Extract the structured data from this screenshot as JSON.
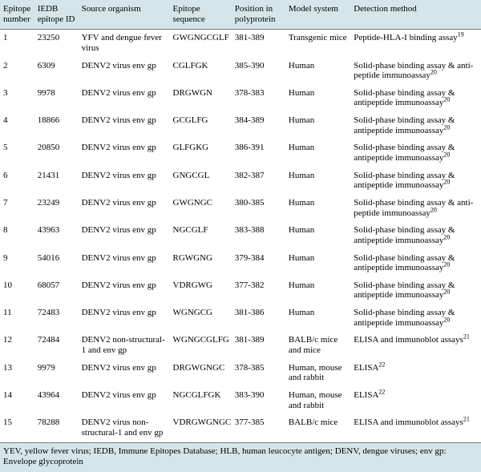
{
  "columns": [
    "Epitope number",
    "IEDB epitope ID",
    "Source organism",
    "Epitope sequence",
    "Position in polyprotein",
    "Model system",
    "Detection method"
  ],
  "rows": [
    {
      "num": "1",
      "iedb": "23250",
      "org": "YFV and dengue fever virus",
      "seq": "GWGNGCGLF",
      "pos": "381-389",
      "model": "Transgenic mice",
      "det": "Peptide-HLA-I binding assay",
      "ref": "19"
    },
    {
      "num": "2",
      "iedb": "6309",
      "org": "DENV2 virus env gp",
      "seq": "CGLFGK",
      "pos": "385-390",
      "model": "Human",
      "det": "Solid-phase binding assay & anti-peptide immunoassay",
      "ref": "20"
    },
    {
      "num": "3",
      "iedb": "9978",
      "org": "DENV2 virus env gp",
      "seq": "DRGWGN",
      "pos": "378-383",
      "model": "Human",
      "det": "Solid-phase binding assay & antipeptide immunoassay",
      "ref": "20"
    },
    {
      "num": "4",
      "iedb": "18866",
      "org": "DENV2 virus env gp",
      "seq": "GCGLFG",
      "pos": "384-389",
      "model": "Human",
      "det": "Solid-phase binding assay & antipeptide immunoassay",
      "ref": "20"
    },
    {
      "num": "5",
      "iedb": "20850",
      "org": "DENV2 virus env gp",
      "seq": "GLFGKG",
      "pos": "386-391",
      "model": "Human",
      "det": "Solid-phase binding assay & antipeptide immunoassay",
      "ref": "20"
    },
    {
      "num": "6",
      "iedb": "21431",
      "org": "DENV2 virus env gp",
      "seq": "GNGCGL",
      "pos": "382-387",
      "model": "Human",
      "det": "Solid-phase binding assay & antipeptide immunoassay",
      "ref": "20"
    },
    {
      "num": "7",
      "iedb": "23249",
      "org": "DENV2 virus env gp",
      "seq": "GWGNGC",
      "pos": "380-385",
      "model": "Human",
      "det": "Solid-phase binding assay & anti-peptide immunoassay",
      "ref": "20"
    },
    {
      "num": "8",
      "iedb": "43963",
      "org": "DENV2 virus env gp",
      "seq": "NGCGLF",
      "pos": "383-388",
      "model": "Human",
      "det": "Solid-phase binding assay & antipeptide immunoassay",
      "ref": "20"
    },
    {
      "num": "9",
      "iedb": "54016",
      "org": "DENV2 virus env gp",
      "seq": "RGWGNG",
      "pos": "379-384",
      "model": "Human",
      "det": "Solid-phase binding assay & antipeptide immunoassay",
      "ref": "20"
    },
    {
      "num": "10",
      "iedb": "68057",
      "org": "DENV2 virus env gp",
      "seq": "VDRGWG",
      "pos": "377-382",
      "model": "Human",
      "det": "Solid-phase binding assay & antipeptide immunoassay",
      "ref": "20"
    },
    {
      "num": "11",
      "iedb": "72483",
      "org": "DENV2 virus env gp",
      "seq": "WGNGCG",
      "pos": "381-386",
      "model": "Human",
      "det": "Solid-phase binding assay & antipeptide immunoassay",
      "ref": "20"
    },
    {
      "num": "12",
      "iedb": "72484",
      "org": "DENV2 non-structural-1 and env gp",
      "seq": "WGNGCGLFG",
      "pos": "381-389",
      "model": "BALB/c mice and mice",
      "det": "ELISA and immunoblot assays",
      "ref": "21"
    },
    {
      "num": "13",
      "iedb": "9979",
      "org": "DENV2 virus env gp",
      "seq": "DRGWGNGC",
      "pos": "378-385",
      "model": "Human, mouse and rabbit",
      "det": "ELISA",
      "ref": "22"
    },
    {
      "num": "14",
      "iedb": "43964",
      "org": "DENV2 virus env gp",
      "seq": "NGCGLFGK",
      "pos": "383-390",
      "model": "Human, mouse and rabbit",
      "det": "ELISA",
      "ref": "22"
    },
    {
      "num": "15",
      "iedb": "78288",
      "org": "DENV2 virus non-structural-1 and env gp",
      "seq": "VDRGWGNGC",
      "pos": "377-385",
      "model": "BALB/c mice",
      "det": "ELISA and immunoblot assays",
      "ref": "21"
    }
  ],
  "footnote": "YEV, yellow fever virus; IEDB, Immune Epitopes Database; HLB, human leucocyte antigen; DENV, dengue viruses; env gp: Envelope glycoprotein"
}
